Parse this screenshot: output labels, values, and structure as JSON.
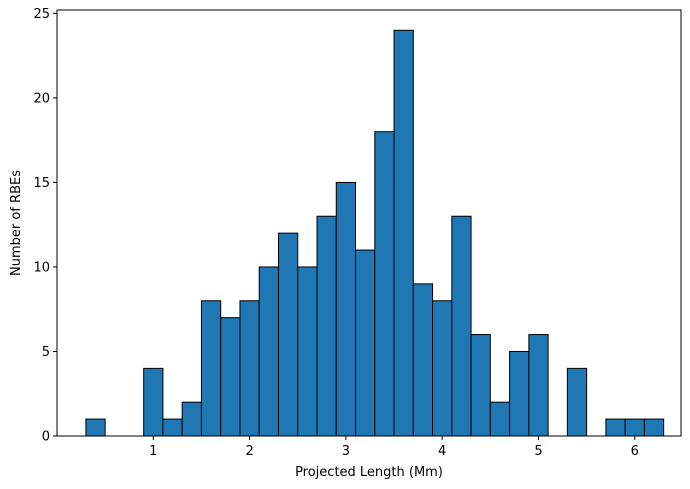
{
  "chart_data": {
    "type": "bar",
    "title": "",
    "xlabel": "Projected Length (Mm)",
    "ylabel": "Number of RBEs",
    "bar_color": "#1f77b4",
    "edge_color": "#000000",
    "xlim": [
      0.0,
      6.48
    ],
    "ylim": [
      0,
      25.2
    ],
    "grid": false,
    "x_ticks": [
      1,
      2,
      3,
      4,
      5,
      6
    ],
    "y_ticks": [
      0,
      5,
      10,
      15,
      20,
      25
    ],
    "bins": [
      {
        "start": 0.3,
        "end": 0.5,
        "count": 1
      },
      {
        "start": 0.5,
        "end": 0.7,
        "count": 0
      },
      {
        "start": 0.7,
        "end": 0.9,
        "count": 0
      },
      {
        "start": 0.9,
        "end": 1.1,
        "count": 4
      },
      {
        "start": 1.1,
        "end": 1.3,
        "count": 1
      },
      {
        "start": 1.3,
        "end": 1.5,
        "count": 2
      },
      {
        "start": 1.5,
        "end": 1.7,
        "count": 8
      },
      {
        "start": 1.7,
        "end": 1.9,
        "count": 7
      },
      {
        "start": 1.9,
        "end": 2.1,
        "count": 8
      },
      {
        "start": 2.1,
        "end": 2.3,
        "count": 10
      },
      {
        "start": 2.3,
        "end": 2.5,
        "count": 12
      },
      {
        "start": 2.5,
        "end": 2.7,
        "count": 10
      },
      {
        "start": 2.7,
        "end": 2.9,
        "count": 13
      },
      {
        "start": 2.9,
        "end": 3.1,
        "count": 15
      },
      {
        "start": 3.1,
        "end": 3.3,
        "count": 11
      },
      {
        "start": 3.3,
        "end": 3.5,
        "count": 18
      },
      {
        "start": 3.5,
        "end": 3.7,
        "count": 24
      },
      {
        "start": 3.7,
        "end": 3.9,
        "count": 9
      },
      {
        "start": 3.9,
        "end": 4.1,
        "count": 8
      },
      {
        "start": 4.1,
        "end": 4.3,
        "count": 13
      },
      {
        "start": 4.3,
        "end": 4.5,
        "count": 6
      },
      {
        "start": 4.5,
        "end": 4.7,
        "count": 2
      },
      {
        "start": 4.7,
        "end": 4.9,
        "count": 5
      },
      {
        "start": 4.9,
        "end": 5.1,
        "count": 6
      },
      {
        "start": 5.1,
        "end": 5.3,
        "count": 0
      },
      {
        "start": 5.3,
        "end": 5.5,
        "count": 4
      },
      {
        "start": 5.5,
        "end": 5.7,
        "count": 0
      },
      {
        "start": 5.7,
        "end": 5.9,
        "count": 1
      },
      {
        "start": 5.9,
        "end": 6.1,
        "count": 1
      },
      {
        "start": 6.1,
        "end": 6.3,
        "count": 1
      }
    ]
  }
}
